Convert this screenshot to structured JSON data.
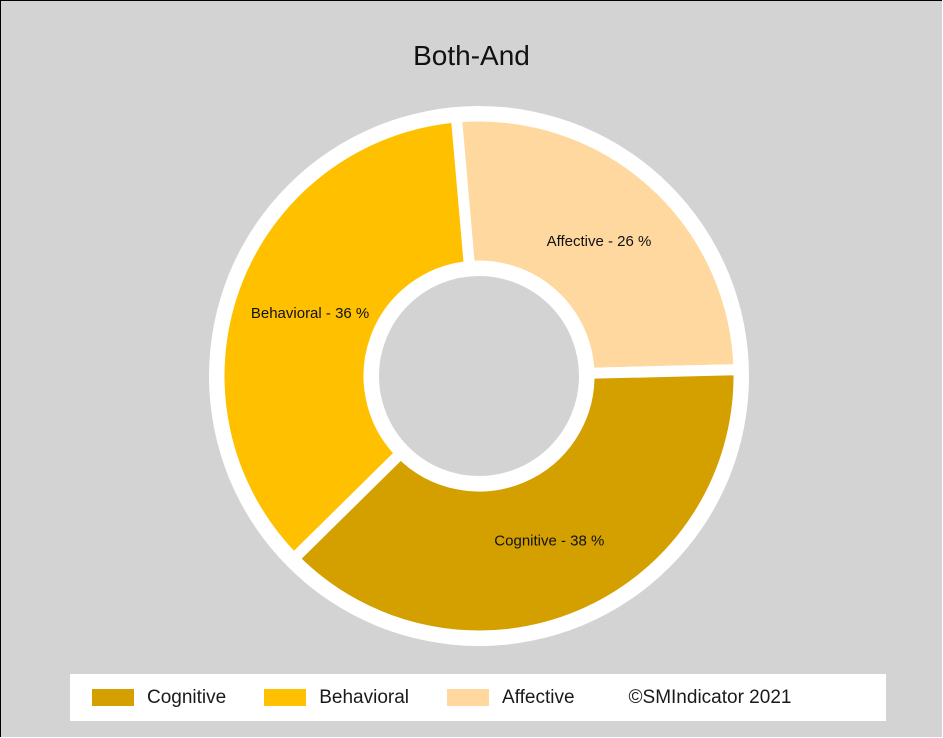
{
  "chart_data": {
    "type": "pie",
    "title": "Both-And",
    "style": "donut",
    "slices": [
      {
        "name": "Affective",
        "value": 26,
        "label": "Affective - 26 %",
        "color": "#ffd8a0"
      },
      {
        "name": "Cognitive",
        "value": 38,
        "label": "Cognitive - 38 %",
        "color": "#d3a000"
      },
      {
        "name": "Behavioral",
        "value": 36,
        "label": "Behavioral - 36 %",
        "color": "#ffc000"
      }
    ],
    "legend": {
      "position": "bottom",
      "entries": [
        "Cognitive",
        "Behavioral",
        "Affective"
      ]
    }
  },
  "legend_items": [
    {
      "label": "Cognitive",
      "color": "#d3a000"
    },
    {
      "label": "Behavioral",
      "color": "#ffc000"
    },
    {
      "label": "Affective",
      "color": "#ffd8a0"
    }
  ],
  "copyright": "©SMIndicator 2021",
  "colors": {
    "background": "#d3d3d3",
    "separator": "#ffffff"
  }
}
